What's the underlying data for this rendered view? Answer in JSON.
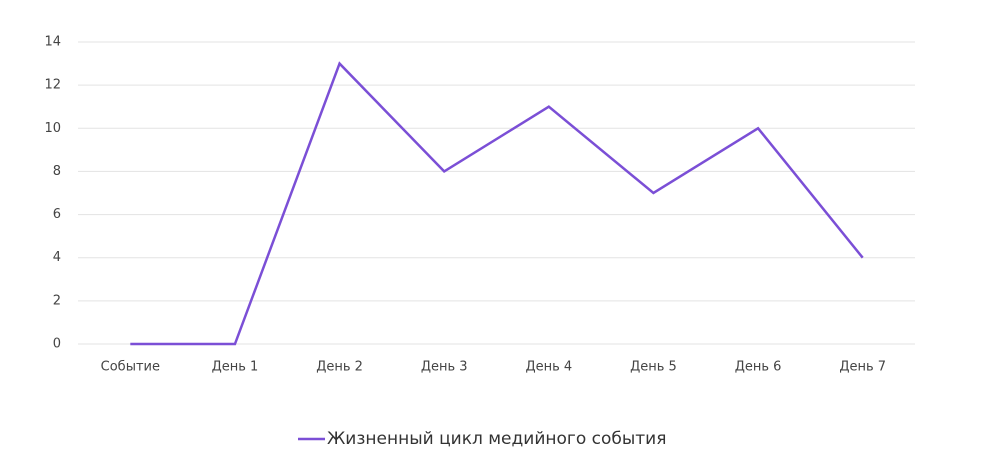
{
  "chart_data": {
    "type": "line",
    "categories": [
      "Событие",
      "День 1",
      "День 2",
      "День 3",
      "День 4",
      "День 5",
      "День 6",
      "День 7"
    ],
    "series": [
      {
        "name": "Жизненный цикл медийного события",
        "color": "#7b4fd6",
        "values": [
          0,
          0,
          13,
          8,
          11,
          7,
          10,
          4
        ]
      }
    ],
    "ylim": [
      0,
      14
    ],
    "yticks": [
      0,
      2,
      4,
      6,
      8,
      10,
      12,
      14
    ],
    "grid": true,
    "legend": "bottom"
  }
}
